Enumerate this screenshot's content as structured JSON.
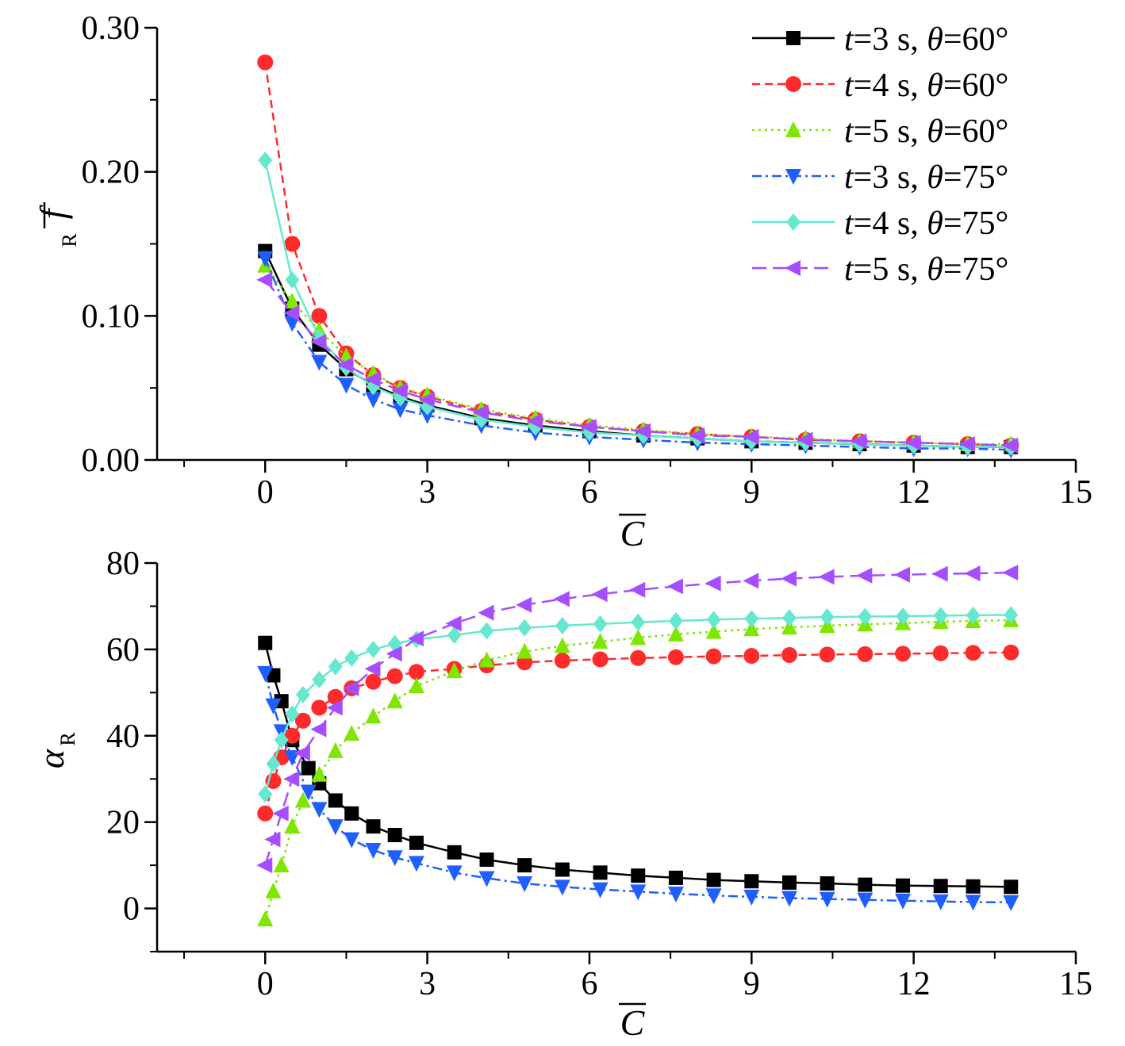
{
  "legend": [
    {
      "t": "t",
      "mid": "=3 s, ",
      "th": "θ",
      "val": "=60°"
    },
    {
      "t": "t",
      "mid": "=4 s, ",
      "th": "θ",
      "val": "=60°"
    },
    {
      "t": "t",
      "mid": "=5 s, ",
      "th": "θ",
      "val": "=60°"
    },
    {
      "t": "t",
      "mid": "=3 s, ",
      "th": "θ",
      "val": "=75°"
    },
    {
      "t": "t",
      "mid": "=4 s, ",
      "th": "θ",
      "val": "=75°"
    },
    {
      "t": "t",
      "mid": "=5 s, ",
      "th": "θ",
      "val": "=75°"
    }
  ],
  "chart_data": [
    {
      "type": "line",
      "xlabel": "C",
      "ylabel": "f",
      "ylabel_sub": "R",
      "xlim": [
        -2,
        15
      ],
      "ylim": [
        0,
        0.3
      ],
      "xticks": [
        0,
        3,
        6,
        9,
        12,
        15
      ],
      "yticks": [
        0.0,
        0.1,
        0.2,
        0.3
      ],
      "xtick_labels": [
        "0",
        "3",
        "6",
        "9",
        "12",
        "15"
      ],
      "ytick_labels": [
        "0.00",
        "0.10",
        "0.20",
        "0.30"
      ],
      "legend_position": "top-right",
      "series": [
        {
          "name": "t=3 s, θ=60°",
          "color": "#000000",
          "dash": "solid",
          "marker": "square",
          "x": [
            0,
            0.5,
            1,
            1.5,
            2,
            2.5,
            3,
            4,
            5,
            6,
            7,
            8,
            9,
            10,
            11,
            12,
            13,
            13.8
          ],
          "y": [
            0.145,
            0.105,
            0.08,
            0.063,
            0.052,
            0.044,
            0.038,
            0.029,
            0.024,
            0.02,
            0.017,
            0.015,
            0.013,
            0.012,
            0.011,
            0.01,
            0.009,
            0.009
          ]
        },
        {
          "name": "t=4 s, θ=60°",
          "color": "#ff2a2a",
          "dash": "dashed",
          "marker": "circle",
          "x": [
            0,
            0.5,
            1,
            1.5,
            2,
            2.5,
            3,
            4,
            5,
            6,
            7,
            8,
            9,
            10,
            11,
            12,
            13,
            13.8
          ],
          "y": [
            0.276,
            0.15,
            0.1,
            0.074,
            0.059,
            0.05,
            0.044,
            0.034,
            0.028,
            0.023,
            0.02,
            0.018,
            0.016,
            0.014,
            0.013,
            0.012,
            0.011,
            0.01
          ]
        },
        {
          "name": "t=5 s, θ=60°",
          "color": "#7fe600",
          "dash": "dotted",
          "marker": "triangle-up",
          "x": [
            0,
            0.5,
            1,
            1.5,
            2,
            2.5,
            3,
            4,
            5,
            6,
            7,
            8,
            9,
            10,
            11,
            12,
            13,
            13.8
          ],
          "y": [
            0.135,
            0.11,
            0.09,
            0.072,
            0.06,
            0.05,
            0.045,
            0.035,
            0.029,
            0.024,
            0.021,
            0.018,
            0.016,
            0.015,
            0.013,
            0.012,
            0.011,
            0.011
          ]
        },
        {
          "name": "t=3 s, θ=75°",
          "color": "#1f5fff",
          "dash": "dashdot",
          "marker": "triangle-down",
          "x": [
            0,
            0.5,
            1,
            1.5,
            2,
            2.5,
            3,
            4,
            5,
            6,
            7,
            8,
            9,
            10,
            11,
            12,
            13,
            13.8
          ],
          "y": [
            0.14,
            0.095,
            0.068,
            0.052,
            0.042,
            0.035,
            0.031,
            0.024,
            0.019,
            0.016,
            0.014,
            0.012,
            0.011,
            0.01,
            0.009,
            0.008,
            0.008,
            0.007
          ]
        },
        {
          "name": "t=4 s, θ=75°",
          "color": "#66e8d0",
          "dash": "solid",
          "marker": "diamond",
          "x": [
            0,
            0.5,
            1,
            1.5,
            2,
            2.5,
            3,
            4,
            5,
            6,
            7,
            8,
            9,
            10,
            11,
            12,
            13,
            13.8
          ],
          "y": [
            0.208,
            0.125,
            0.085,
            0.064,
            0.051,
            0.043,
            0.037,
            0.028,
            0.023,
            0.019,
            0.017,
            0.015,
            0.013,
            0.012,
            0.011,
            0.01,
            0.009,
            0.009
          ]
        },
        {
          "name": "t=5 s, θ=75°",
          "color": "#a64dff",
          "dash": "longdash",
          "marker": "triangle-left",
          "x": [
            0,
            0.5,
            1,
            1.5,
            2,
            2.5,
            3,
            4,
            5,
            6,
            7,
            8,
            9,
            10,
            11,
            12,
            13,
            13.8
          ],
          "y": [
            0.125,
            0.102,
            0.082,
            0.066,
            0.056,
            0.048,
            0.042,
            0.033,
            0.027,
            0.023,
            0.02,
            0.017,
            0.016,
            0.014,
            0.013,
            0.012,
            0.011,
            0.01
          ]
        }
      ]
    },
    {
      "type": "line",
      "xlabel": "C",
      "ylabel": "α",
      "ylabel_sub": "R",
      "xlim": [
        -2,
        15
      ],
      "ylim": [
        -10,
        80
      ],
      "xticks": [
        0,
        3,
        6,
        9,
        12,
        15
      ],
      "yticks": [
        0,
        20,
        40,
        60,
        80
      ],
      "xtick_labels": [
        "0",
        "3",
        "6",
        "9",
        "12",
        "15"
      ],
      "ytick_labels": [
        "0",
        "20",
        "40",
        "60",
        "80"
      ],
      "series": [
        {
          "name": "t=3 s, θ=60°",
          "color": "#000000",
          "dash": "solid",
          "marker": "square",
          "x": [
            0,
            0.15,
            0.3,
            0.5,
            0.8,
            1,
            1.3,
            1.6,
            2,
            2.4,
            2.8,
            3.5,
            4.1,
            4.8,
            5.5,
            6.2,
            6.9,
            7.6,
            8.3,
            9,
            9.7,
            10.4,
            11.1,
            11.8,
            12.5,
            13.1,
            13.8
          ],
          "y": [
            61.5,
            54,
            48,
            39,
            32.5,
            29,
            25,
            22,
            19,
            17,
            15.2,
            13,
            11.3,
            10,
            9,
            8.3,
            7.6,
            7.1,
            6.6,
            6.3,
            6,
            5.8,
            5.5,
            5.3,
            5.2,
            5.1,
            5
          ]
        },
        {
          "name": "t=4 s, θ=60°",
          "color": "#ff2a2a",
          "dash": "dashed",
          "marker": "circle",
          "x": [
            0,
            0.15,
            0.3,
            0.5,
            0.7,
            1,
            1.3,
            1.6,
            2,
            2.4,
            2.8,
            3.5,
            4.1,
            4.8,
            5.5,
            6.2,
            6.9,
            7.6,
            8.3,
            9,
            9.7,
            10.4,
            11.1,
            11.8,
            12.5,
            13.1,
            13.8
          ],
          "y": [
            22,
            29.5,
            35,
            40,
            43.5,
            46.5,
            49,
            51,
            52.5,
            53.8,
            54.8,
            55.5,
            56.3,
            57,
            57.4,
            57.7,
            58,
            58.2,
            58.4,
            58.5,
            58.7,
            58.8,
            58.9,
            59,
            59.1,
            59.2,
            59.3
          ]
        },
        {
          "name": "t=5 s, θ=60°",
          "color": "#7fe600",
          "dash": "dotted",
          "marker": "triangle-up",
          "x": [
            0,
            0.15,
            0.3,
            0.5,
            0.7,
            1,
            1.3,
            1.6,
            2,
            2.4,
            2.8,
            3.5,
            4.1,
            4.8,
            5.5,
            6.2,
            6.9,
            7.6,
            8.3,
            9,
            9.7,
            10.4,
            11.1,
            11.8,
            12.5,
            13.1,
            13.8
          ],
          "y": [
            -2.5,
            4,
            10,
            19,
            25,
            31,
            36.5,
            40.5,
            44.5,
            48,
            51.5,
            55,
            57.5,
            59.5,
            60.8,
            61.8,
            62.7,
            63.5,
            64.1,
            64.7,
            65.1,
            65.5,
            65.8,
            66.1,
            66.4,
            66.6,
            66.8
          ]
        },
        {
          "name": "t=3 s, θ=75°",
          "color": "#1f5fff",
          "dash": "dashdot",
          "marker": "triangle-down",
          "x": [
            0,
            0.15,
            0.3,
            0.5,
            0.8,
            1,
            1.3,
            1.6,
            2,
            2.4,
            2.8,
            3.5,
            4.1,
            4.8,
            5.5,
            6.2,
            6.9,
            7.6,
            8.3,
            9,
            9.7,
            10.4,
            11.1,
            11.8,
            12.5,
            13.1,
            13.8
          ],
          "y": [
            54.5,
            47,
            41,
            35,
            27,
            23,
            19,
            16,
            13.5,
            11.8,
            10.5,
            8.3,
            7,
            5.8,
            5,
            4.4,
            3.9,
            3.4,
            3,
            2.7,
            2.4,
            2.2,
            2,
            1.8,
            1.6,
            1.5,
            1.4
          ]
        },
        {
          "name": "t=4 s, θ=75°",
          "color": "#66e8d0",
          "dash": "solid",
          "marker": "diamond",
          "x": [
            0,
            0.15,
            0.3,
            0.5,
            0.7,
            1,
            1.3,
            1.6,
            2,
            2.4,
            2.8,
            3.5,
            4.1,
            4.8,
            5.5,
            6.2,
            6.9,
            7.6,
            8.3,
            9,
            9.7,
            10.4,
            11.1,
            11.8,
            12.5,
            13.1,
            13.8
          ],
          "y": [
            26.5,
            33.5,
            39,
            45,
            49.5,
            53,
            56,
            58,
            60,
            61.3,
            62.3,
            63.3,
            64.3,
            65,
            65.5,
            65.9,
            66.3,
            66.6,
            66.9,
            67.1,
            67.3,
            67.5,
            67.6,
            67.7,
            67.8,
            67.9,
            68
          ]
        },
        {
          "name": "t=5 s, θ=75°",
          "color": "#a64dff",
          "dash": "longdash",
          "marker": "triangle-left",
          "x": [
            0,
            0.15,
            0.3,
            0.5,
            0.7,
            1,
            1.3,
            1.6,
            2,
            2.4,
            2.8,
            3.5,
            4.1,
            4.8,
            5.5,
            6.2,
            6.9,
            7.6,
            8.3,
            9,
            9.7,
            10.4,
            11.1,
            11.8,
            12.5,
            13.1,
            13.8
          ],
          "y": [
            10,
            16,
            22,
            30,
            36,
            41.5,
            46.5,
            51,
            55.5,
            59,
            62.5,
            66,
            68.5,
            70.3,
            71.7,
            72.8,
            73.8,
            74.6,
            75.3,
            75.9,
            76.4,
            76.8,
            77.1,
            77.3,
            77.5,
            77.6,
            77.8
          ]
        }
      ]
    }
  ]
}
